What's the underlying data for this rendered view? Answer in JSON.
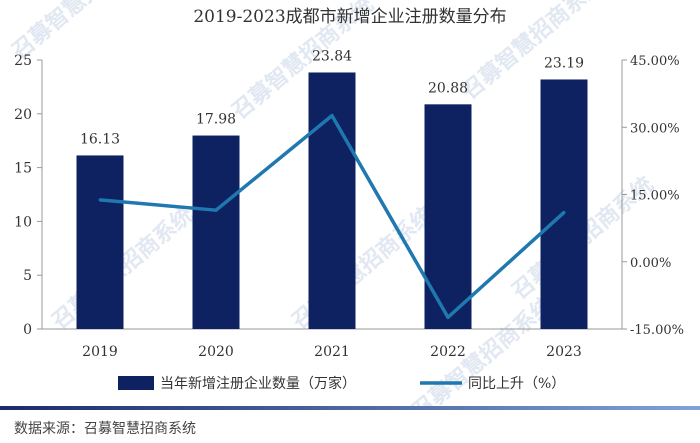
{
  "chart_data": {
    "type": "bar+line",
    "title": "2019-2023成都市新增企业注册数量分布",
    "categories": [
      "2019",
      "2020",
      "2021",
      "2022",
      "2023"
    ],
    "series": [
      {
        "name": "当年新增注册企业数量（万家）",
        "type": "bar",
        "axis": "left",
        "values": [
          16.13,
          17.98,
          23.84,
          20.88,
          23.19
        ],
        "labels": [
          "16.13",
          "17.98",
          "23.84",
          "20.88",
          "23.19"
        ],
        "color": "#0e2160"
      },
      {
        "name": "同比上升（%）",
        "type": "line",
        "axis": "right",
        "values": [
          13.8,
          11.5,
          32.6,
          -12.4,
          11.0
        ],
        "color": "#1f78b0"
      }
    ],
    "y_left": {
      "min": 0,
      "max": 25,
      "ticks": [
        "0",
        "5",
        "10",
        "15",
        "20",
        "25"
      ],
      "tick_values": [
        0,
        5,
        10,
        15,
        20,
        25
      ]
    },
    "y_right": {
      "min": -15,
      "max": 45,
      "ticks": [
        "-15.00%",
        "0.00%",
        "15.00%",
        "30.00%",
        "45.00%"
      ],
      "tick_values": [
        -15,
        0,
        15,
        30,
        45
      ]
    },
    "legend_position": "bottom",
    "grid": false
  },
  "source_text": "数据来源：召募智慧招商系统",
  "watermark_text": "召募智慧招商系统",
  "colors": {
    "bar": "#0e2160",
    "line": "#1f78b0",
    "watermark": "#c9d6e8"
  }
}
